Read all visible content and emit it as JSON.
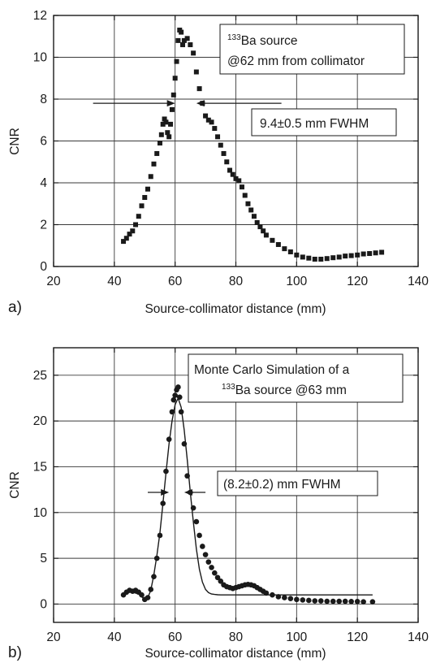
{
  "panels": [
    {
      "letter": "a)"
    },
    {
      "letter": "b)"
    }
  ],
  "chart_data": [
    {
      "type": "scatter",
      "xlabel": "Source-collimator distance (mm)",
      "ylabel": "CNR",
      "xlim": [
        20,
        140
      ],
      "ylim": [
        0,
        12
      ],
      "xticks": [
        20,
        40,
        60,
        80,
        100,
        120,
        140
      ],
      "yticks": [
        0,
        2,
        4,
        6,
        8,
        10,
        12
      ],
      "grid": true,
      "legend_lines": [
        {
          "sup": "133",
          "text": "Ba source"
        },
        {
          "sup": "",
          "text": "@62 mm from collimator"
        }
      ],
      "fwhm_label": "9.4±0.5 mm FWHM",
      "fwhm_arrows": {
        "y": 7.8,
        "left_from": 33,
        "left_to": 60,
        "right_from": 95,
        "right_to": 67
      },
      "series": [
        {
          "marker": "square",
          "x": [
            43,
            44,
            45,
            46,
            47,
            48,
            49,
            50,
            51,
            52,
            53,
            54,
            55,
            55.5,
            56,
            56.5,
            57,
            57.5,
            58,
            58.5,
            59,
            59.5,
            60,
            60.5,
            61,
            61.5,
            62,
            62.5,
            63,
            64,
            65,
            66,
            67,
            68,
            69,
            70,
            71,
            72,
            73,
            74,
            75,
            76,
            77,
            78,
            79,
            80,
            81,
            82,
            83,
            84,
            85,
            86,
            87,
            88,
            89,
            90,
            92,
            94,
            96,
            98,
            100,
            102,
            104,
            106,
            108,
            110,
            112,
            114,
            116,
            118,
            120,
            122,
            124,
            126,
            128
          ],
          "y": [
            1.2,
            1.35,
            1.55,
            1.7,
            2.0,
            2.4,
            2.9,
            3.3,
            3.7,
            4.3,
            4.9,
            5.4,
            5.9,
            6.3,
            6.8,
            7.05,
            6.9,
            6.4,
            6.2,
            6.8,
            7.5,
            8.2,
            9.0,
            9.8,
            10.8,
            11.3,
            11.2,
            10.6,
            10.8,
            10.9,
            10.6,
            10.2,
            9.3,
            8.5,
            7.8,
            7.2,
            7.0,
            6.9,
            6.6,
            6.2,
            5.8,
            5.4,
            5.0,
            4.6,
            4.4,
            4.2,
            4.1,
            3.8,
            3.4,
            3.0,
            2.7,
            2.4,
            2.1,
            1.9,
            1.7,
            1.5,
            1.25,
            1.05,
            0.85,
            0.7,
            0.55,
            0.45,
            0.4,
            0.35,
            0.35,
            0.38,
            0.42,
            0.45,
            0.5,
            0.52,
            0.55,
            0.6,
            0.62,
            0.65,
            0.68
          ]
        }
      ]
    },
    {
      "type": "line",
      "xlabel": "Source-collimator distance (mm)",
      "ylabel": "CNR",
      "xlim": [
        20,
        140
      ],
      "ylim": [
        -2,
        28
      ],
      "xticks": [
        20,
        40,
        60,
        80,
        100,
        120,
        140
      ],
      "yticks": [
        0,
        5,
        10,
        15,
        20,
        25
      ],
      "grid": true,
      "legend_lines": [
        {
          "sup": "",
          "text": "Monte Carlo Simulation of a"
        },
        {
          "sup": "133",
          "text": "Ba source @63 mm"
        }
      ],
      "fwhm_label": "(8.2±0.2) mm FWHM",
      "fwhm_arrows": {
        "y": 12.2,
        "left_from": 51,
        "left_to": 58,
        "right_from": 70,
        "right_to": 63
      },
      "series": [
        {
          "marker": "circle",
          "x": [
            43,
            44,
            45,
            46,
            47,
            48,
            49,
            50,
            51,
            52,
            53,
            54,
            55,
            56,
            57,
            58,
            59,
            59.5,
            60,
            60.5,
            61,
            61.5,
            62,
            63,
            64,
            65,
            66,
            67,
            68,
            69,
            70,
            71,
            72,
            73,
            74,
            75,
            76,
            77,
            78,
            79,
            80,
            81,
            82,
            83,
            84,
            85,
            86,
            87,
            88,
            89,
            90,
            92,
            94,
            96,
            98,
            100,
            102,
            104,
            106,
            108,
            110,
            112,
            114,
            116,
            118,
            120,
            122,
            125
          ],
          "y": [
            1.0,
            1.3,
            1.5,
            1.4,
            1.5,
            1.3,
            1.0,
            0.5,
            0.7,
            1.6,
            3.0,
            5.0,
            7.5,
            11.0,
            14.5,
            18.0,
            21.0,
            22.3,
            22.8,
            23.4,
            23.7,
            22.6,
            21.0,
            17.5,
            14.0,
            12.2,
            10.5,
            9.0,
            7.5,
            6.3,
            5.4,
            4.6,
            4.0,
            3.4,
            2.9,
            2.5,
            2.1,
            1.9,
            1.8,
            1.7,
            1.8,
            1.9,
            2.0,
            2.1,
            2.15,
            2.1,
            2.0,
            1.8,
            1.6,
            1.4,
            1.2,
            1.0,
            0.8,
            0.7,
            0.6,
            0.5,
            0.45,
            0.4,
            0.35,
            0.35,
            0.3,
            0.3,
            0.3,
            0.3,
            0.28,
            0.28,
            0.25,
            0.25
          ]
        },
        {
          "marker": "line",
          "x": [
            43,
            44,
            45,
            46,
            47,
            48,
            49,
            50,
            51,
            52,
            53,
            54,
            55,
            56,
            57,
            58,
            59,
            60,
            61,
            62,
            63,
            64,
            65,
            66,
            67,
            68,
            69,
            70,
            71,
            72,
            73,
            74,
            75,
            76,
            78,
            80,
            90,
            100,
            110,
            120,
            125
          ],
          "y": [
            1.1,
            1.3,
            1.4,
            1.3,
            1.2,
            1.1,
            0.8,
            0.5,
            0.7,
            1.5,
            3.2,
            5.3,
            7.8,
            11.0,
            14.3,
            17.5,
            20.0,
            21.8,
            22.5,
            21.5,
            19.0,
            15.8,
            12.2,
            9.0,
            6.0,
            3.8,
            2.4,
            1.6,
            1.25,
            1.1,
            1.05,
            1.02,
            1.0,
            1.0,
            1.0,
            1.0,
            1.0,
            1.0,
            1.0,
            1.0,
            1.0
          ]
        }
      ]
    }
  ]
}
